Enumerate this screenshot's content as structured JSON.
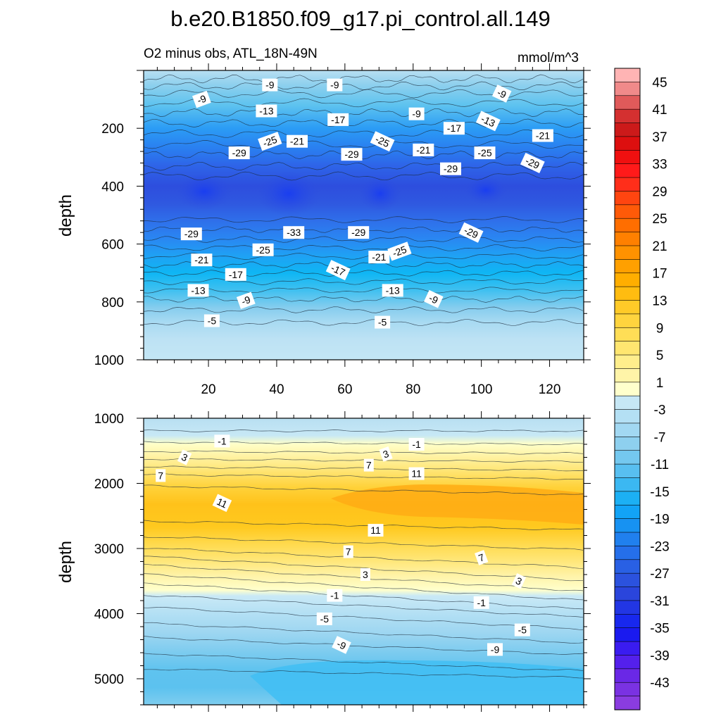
{
  "chart_data": {
    "type": "contour",
    "title": "b.e20.B1850.f09_g17.pi_control.all.149",
    "subtitle_left": "O2 minus obs, ATL_18N-49N",
    "subtitle_right": "mmol/m^3",
    "colorbar": {
      "levels": [
        -45,
        -43,
        -41,
        -39,
        -37,
        -35,
        -33,
        -31,
        -29,
        -27,
        -25,
        -23,
        -21,
        -19,
        -17,
        -15,
        -13,
        -11,
        -9,
        -7,
        -5,
        -3,
        -1,
        1,
        3,
        5,
        7,
        9,
        11,
        13,
        15,
        17,
        19,
        21,
        23,
        25,
        27,
        29,
        31,
        33,
        35,
        37,
        39,
        41,
        43,
        45
      ],
      "tick_labels": [
        "45",
        "41",
        "37",
        "33",
        "29",
        "25",
        "21",
        "17",
        "13",
        "9",
        "5",
        "1",
        "-3",
        "-7",
        "-11",
        "-15",
        "-19",
        "-23",
        "-27",
        "-31",
        "-35",
        "-39",
        "-43"
      ]
    },
    "panels": [
      {
        "name": "upper ocean",
        "ylabel": "depth",
        "xlabel": "",
        "xlim": [
          1,
          130
        ],
        "ylim": [
          1000,
          0
        ],
        "xticks": [
          "20",
          "40",
          "60",
          "80",
          "100",
          "120"
        ],
        "yticks": [
          "200",
          "400",
          "600",
          "800",
          "1000"
        ],
        "contour_labels": [
          {
            "text": "-9",
            "x": 38,
            "depth": 50
          },
          {
            "text": "-9",
            "x": 57,
            "depth": 50
          },
          {
            "text": "-9",
            "x": 106,
            "depth": 80
          },
          {
            "text": "-9",
            "x": 18,
            "depth": 100
          },
          {
            "text": "-13",
            "x": 37,
            "depth": 140
          },
          {
            "text": "-9",
            "x": 81,
            "depth": 150
          },
          {
            "text": "-17",
            "x": 58,
            "depth": 170
          },
          {
            "text": "-13",
            "x": 102,
            "depth": 175
          },
          {
            "text": "-17",
            "x": 92,
            "depth": 200
          },
          {
            "text": "-21",
            "x": 118,
            "depth": 225
          },
          {
            "text": "-25",
            "x": 38,
            "depth": 245
          },
          {
            "text": "-21",
            "x": 46,
            "depth": 245
          },
          {
            "text": "-25",
            "x": 71,
            "depth": 245
          },
          {
            "text": "-21",
            "x": 83,
            "depth": 275
          },
          {
            "text": "-29",
            "x": 29,
            "depth": 285
          },
          {
            "text": "-29",
            "x": 62,
            "depth": 290
          },
          {
            "text": "-25",
            "x": 101,
            "depth": 285
          },
          {
            "text": "-29",
            "x": 115,
            "depth": 320
          },
          {
            "text": "-29",
            "x": 91,
            "depth": 340
          },
          {
            "text": "-29",
            "x": 15,
            "depth": 565
          },
          {
            "text": "-33",
            "x": 45,
            "depth": 560
          },
          {
            "text": "-29",
            "x": 64,
            "depth": 560
          },
          {
            "text": "-29",
            "x": 97,
            "depth": 560
          },
          {
            "text": "-25",
            "x": 36,
            "depth": 620
          },
          {
            "text": "-25",
            "x": 76,
            "depth": 625
          },
          {
            "text": "-21",
            "x": 18,
            "depth": 655
          },
          {
            "text": "-21",
            "x": 70,
            "depth": 645
          },
          {
            "text": "-17",
            "x": 58,
            "depth": 690
          },
          {
            "text": "-17",
            "x": 28,
            "depth": 705
          },
          {
            "text": "-13",
            "x": 17,
            "depth": 760
          },
          {
            "text": "-13",
            "x": 74,
            "depth": 760
          },
          {
            "text": "-9",
            "x": 31,
            "depth": 795
          },
          {
            "text": "-9",
            "x": 86,
            "depth": 790
          },
          {
            "text": "-5",
            "x": 21,
            "depth": 865
          },
          {
            "text": "-5",
            "x": 71,
            "depth": 870
          }
        ]
      },
      {
        "name": "deep ocean",
        "ylabel": "depth",
        "xlabel": "",
        "xlim": [
          1,
          130
        ],
        "ylim": [
          5400,
          1000
        ],
        "xticks": [],
        "yticks": [
          "1000",
          "2000",
          "3000",
          "4000",
          "5000"
        ],
        "contour_labels": [
          {
            "text": "-1",
            "x": 24,
            "depth": 1350
          },
          {
            "text": "-1",
            "x": 81,
            "depth": 1400
          },
          {
            "text": "3",
            "x": 13,
            "depth": 1600
          },
          {
            "text": "3",
            "x": 72,
            "depth": 1550
          },
          {
            "text": "7",
            "x": 67,
            "depth": 1720
          },
          {
            "text": "7",
            "x": 6,
            "depth": 1880
          },
          {
            "text": "11",
            "x": 81,
            "depth": 1850
          },
          {
            "text": "11",
            "x": 24,
            "depth": 2300
          },
          {
            "text": "11",
            "x": 69,
            "depth": 2720
          },
          {
            "text": "7",
            "x": 61,
            "depth": 3050
          },
          {
            "text": "7",
            "x": 100,
            "depth": 3140
          },
          {
            "text": "3",
            "x": 66,
            "depth": 3400
          },
          {
            "text": "3",
            "x": 111,
            "depth": 3500
          },
          {
            "text": "-1",
            "x": 57,
            "depth": 3720
          },
          {
            "text": "-1",
            "x": 100,
            "depth": 3830
          },
          {
            "text": "-5",
            "x": 54,
            "depth": 4080
          },
          {
            "text": "-5",
            "x": 112,
            "depth": 4250
          },
          {
            "text": "-9",
            "x": 59,
            "depth": 4480
          },
          {
            "text": "-9",
            "x": 104,
            "depth": 4550
          }
        ]
      }
    ]
  }
}
